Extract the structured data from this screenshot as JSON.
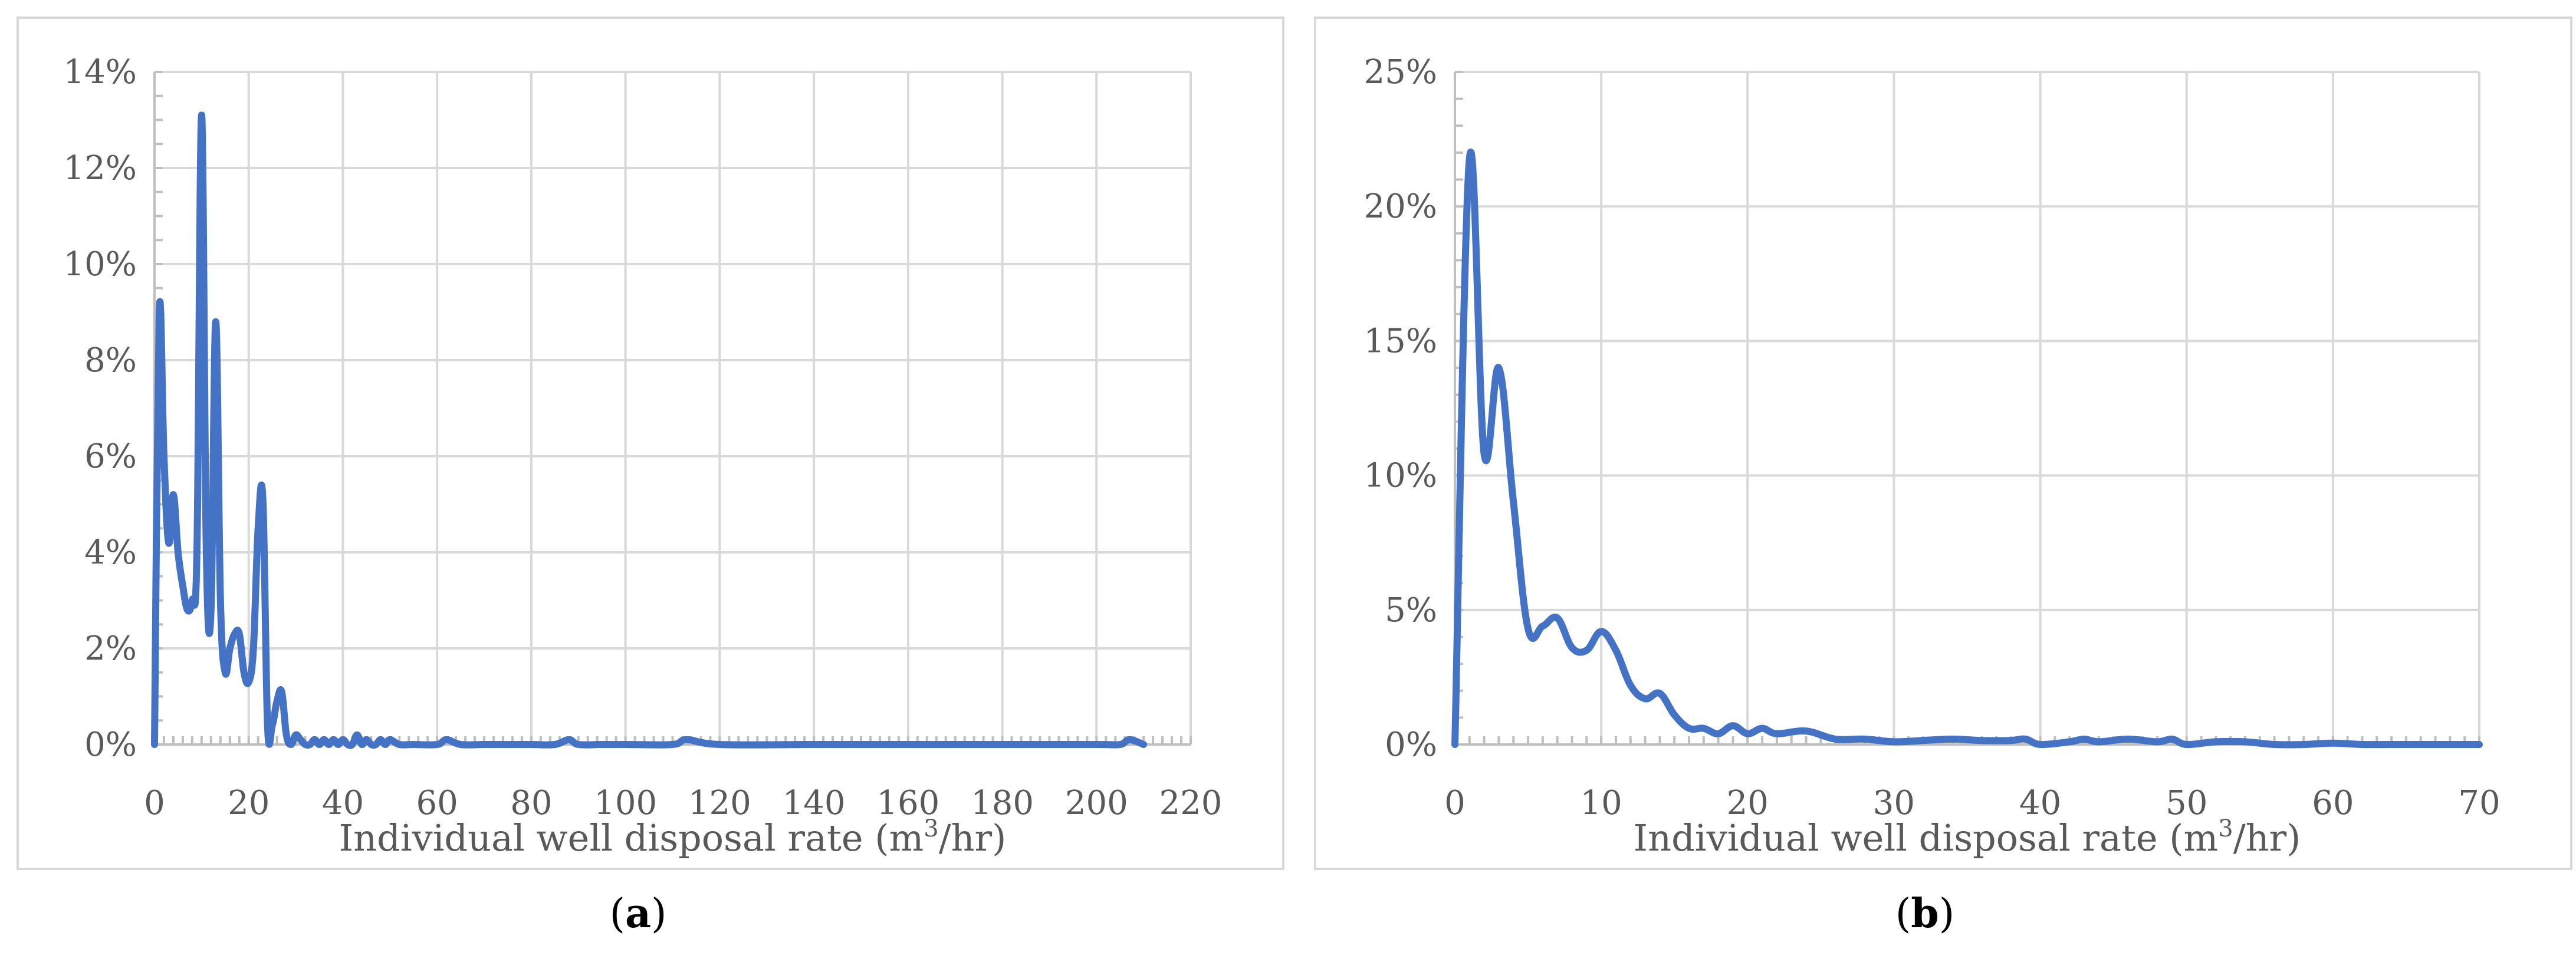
{
  "captions": {
    "a_letter": "a",
    "b_letter": "b"
  },
  "chart_data": [
    {
      "type": "line",
      "xlabel": "Individual well disposal rate (m",
      "xlabel_sup": "3",
      "xlabel_tail": "/hr)",
      "xlim": [
        0,
        220
      ],
      "ylim": [
        0,
        0.14
      ],
      "x_ticks": [
        0,
        20,
        40,
        60,
        80,
        100,
        120,
        140,
        160,
        180,
        200,
        220
      ],
      "y_ticks": [
        0,
        0.02,
        0.04,
        0.06,
        0.08,
        0.1,
        0.12,
        0.14
      ],
      "y_tick_labels": [
        "0%",
        "2%",
        "4%",
        "6%",
        "8%",
        "10%",
        "12%",
        "14%"
      ],
      "grid": true,
      "line_color": "#4472c4",
      "series": [
        {
          "x": [
            0,
            1,
            2,
            3,
            4,
            5,
            6,
            7,
            8,
            9,
            10,
            11,
            12,
            13,
            14,
            15,
            16,
            17,
            18,
            19,
            20,
            21,
            22,
            23,
            24,
            25,
            26,
            27,
            28,
            29,
            30,
            31,
            32,
            33,
            34,
            35,
            36,
            37,
            38,
            39,
            40,
            41,
            42,
            43,
            44,
            45,
            46,
            47,
            48,
            49,
            50,
            52,
            55,
            60,
            62,
            65,
            70,
            75,
            80,
            85,
            88,
            90,
            95,
            100,
            110,
            113,
            120,
            140,
            160,
            180,
            200,
            205,
            207,
            210
          ],
          "values": [
            0,
            0.09,
            0.06,
            0.042,
            0.052,
            0.04,
            0.033,
            0.028,
            0.03,
            0.04,
            0.131,
            0.04,
            0.028,
            0.088,
            0.03,
            0.015,
            0.02,
            0.023,
            0.023,
            0.015,
            0.013,
            0.02,
            0.045,
            0.051,
            0.004,
            0.004,
            0.009,
            0.011,
            0.002,
            0.0,
            0.002,
            0.001,
            0.0,
            0.0,
            0.001,
            0.0,
            0.001,
            0.0,
            0.001,
            0.0,
            0.001,
            0.0,
            0.0,
            0.002,
            0.0,
            0.001,
            0.0,
            0.0,
            0.001,
            0.0,
            0.001,
            0.0,
            0.0,
            0.0,
            0.001,
            0.0,
            0.0,
            0.0,
            0.0,
            0.0,
            0.001,
            0.0,
            0.0,
            0.0,
            0.0,
            0.001,
            0.0,
            0.0,
            0.0,
            0.0,
            0.0,
            0.0,
            0.001,
            0.0
          ]
        }
      ]
    },
    {
      "type": "line",
      "xlabel": "Individual well disposal rate (m",
      "xlabel_sup": "3",
      "xlabel_tail": "/hr)",
      "xlim": [
        0,
        70
      ],
      "ylim": [
        0,
        0.25
      ],
      "x_ticks": [
        0,
        10,
        20,
        30,
        40,
        50,
        60,
        70
      ],
      "y_ticks": [
        0,
        0.05,
        0.1,
        0.15,
        0.2,
        0.25
      ],
      "y_tick_labels": [
        "0%",
        "5%",
        "10%",
        "15%",
        "20%",
        "25%"
      ],
      "grid": true,
      "line_color": "#4472c4",
      "series": [
        {
          "x": [
            0,
            1,
            2,
            3,
            4,
            5,
            6,
            7,
            8,
            9,
            10,
            11,
            12,
            13,
            14,
            15,
            16,
            17,
            18,
            19,
            20,
            21,
            22,
            24,
            26,
            28,
            30,
            32,
            34,
            36,
            38,
            39,
            40,
            42,
            43,
            44,
            46,
            48,
            49,
            50,
            52,
            54,
            56,
            58,
            60,
            62,
            64,
            66,
            68,
            70
          ],
          "values": [
            0,
            0.218,
            0.108,
            0.14,
            0.09,
            0.043,
            0.044,
            0.047,
            0.036,
            0.035,
            0.042,
            0.035,
            0.022,
            0.017,
            0.019,
            0.011,
            0.006,
            0.006,
            0.004,
            0.007,
            0.004,
            0.006,
            0.004,
            0.005,
            0.002,
            0.002,
            0.001,
            0.0015,
            0.002,
            0.0015,
            0.0015,
            0.002,
            0.0,
            0.001,
            0.002,
            0.001,
            0.002,
            0.001,
            0.002,
            0.0,
            0.001,
            0.001,
            0.0,
            0.0,
            0.0005,
            0.0,
            0.0,
            0.0,
            0.0,
            0.0
          ]
        }
      ]
    }
  ]
}
